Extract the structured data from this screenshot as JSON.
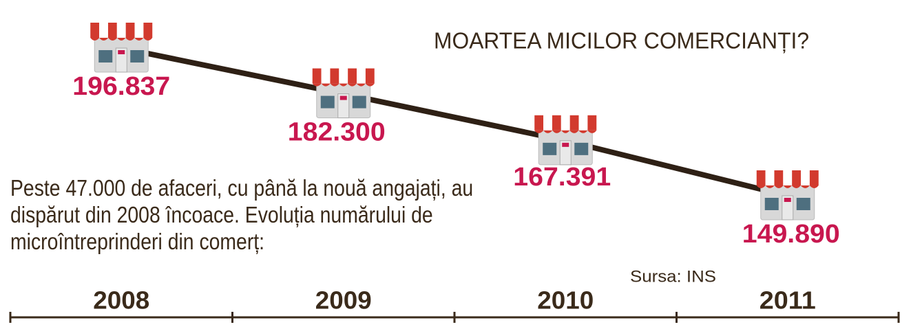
{
  "chart_data": {
    "type": "line",
    "title": "MOARTEA MICILOR COMERCIANȚI?",
    "subtitle": "Peste 47.000 de afaceri, cu până la nouă angajați, au dispărut din 2008 încoace. Evoluția numărului de microîntreprinderi din comerț:",
    "source": "Sursa: INS",
    "categories": [
      "2008",
      "2009",
      "2010",
      "2011"
    ],
    "values": [
      196837,
      182300,
      167391,
      149890
    ],
    "value_labels": [
      "196.837",
      "182.300",
      "167.391",
      "149.890"
    ],
    "color": "#2e2015",
    "label_color": "#c8174f"
  }
}
